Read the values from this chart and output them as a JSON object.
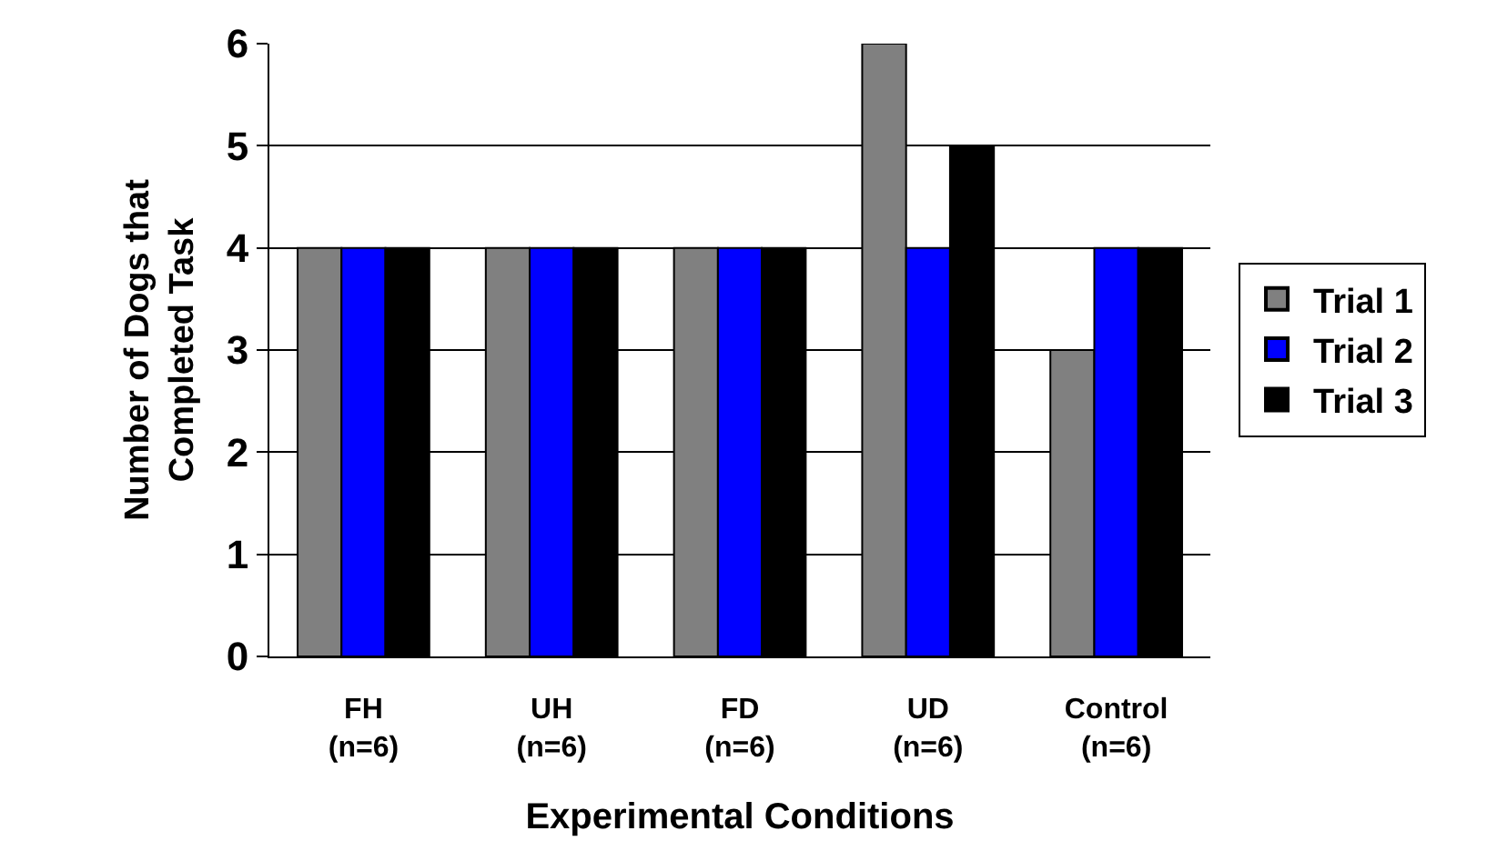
{
  "chart_data": {
    "type": "bar",
    "xlabel": "Experimental Conditions",
    "ylabel": "Number of Dogs that\nCompleted Task",
    "categories": [
      "FH\n(n=6)",
      "UH\n(n=6)",
      "FD\n(n=6)",
      "UD\n(n=6)",
      "Control\n(n=6)"
    ],
    "series": [
      {
        "name": "Trial 1",
        "color": "#808080",
        "values": [
          4,
          4,
          4,
          6,
          3
        ]
      },
      {
        "name": "Trial 2",
        "color": "#0000ff",
        "values": [
          4,
          4,
          4,
          4,
          4
        ]
      },
      {
        "name": "Trial 3",
        "color": "#000000",
        "values": [
          4,
          4,
          4,
          5,
          4
        ]
      }
    ],
    "ylim": [
      0,
      6
    ],
    "yticks": [
      0,
      1,
      2,
      3,
      4,
      5,
      6
    ],
    "grid": "y",
    "legend": "right"
  }
}
